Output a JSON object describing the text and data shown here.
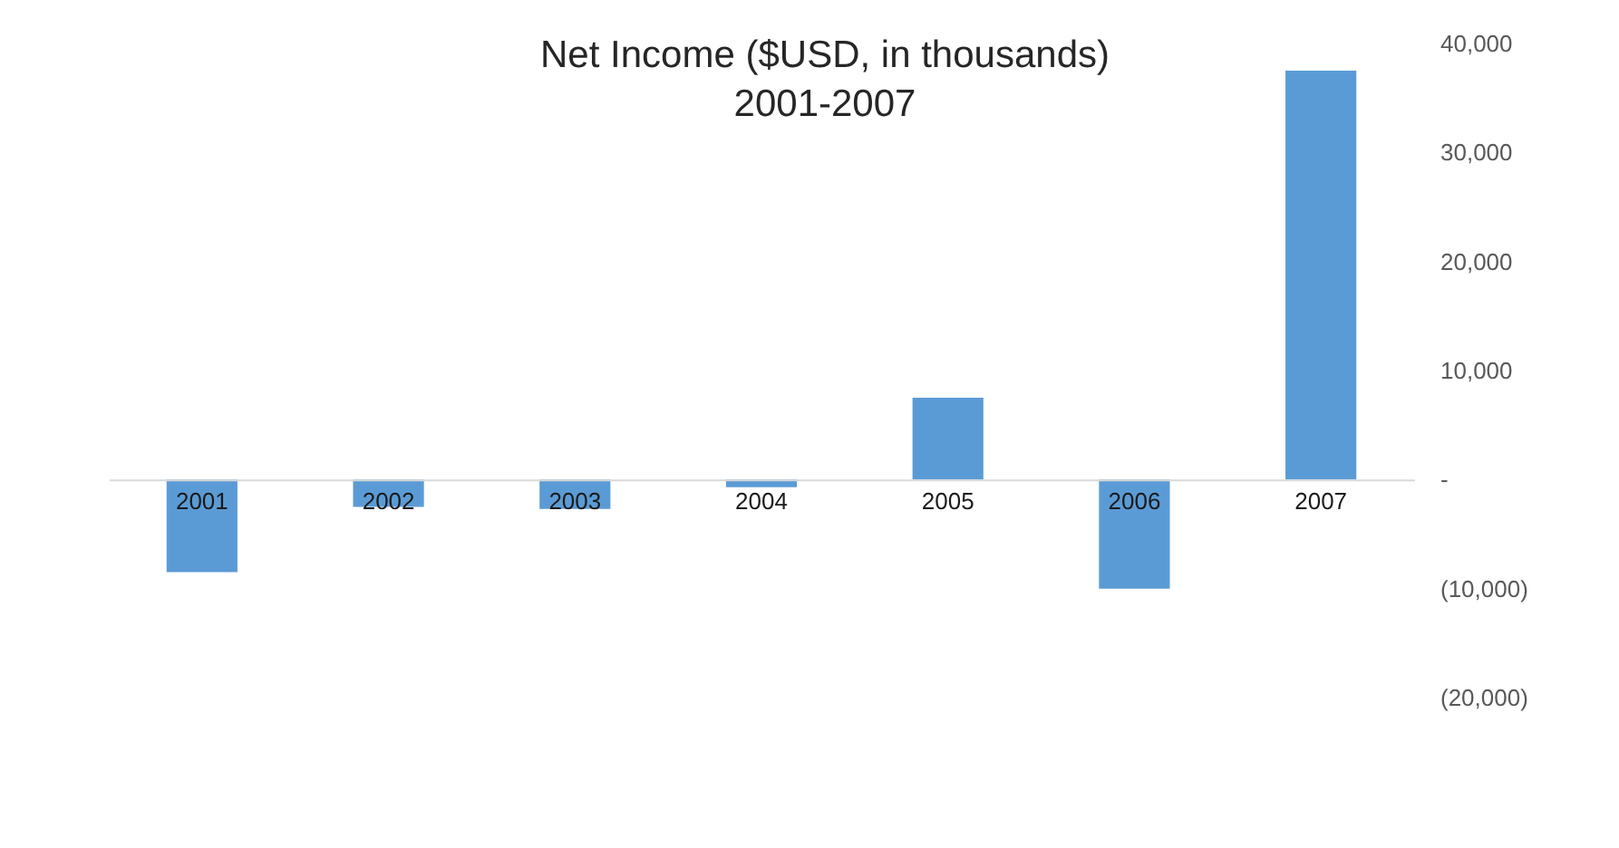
{
  "chart_data": {
    "type": "bar",
    "title": "Net Income ($USD, in thousands)",
    "subtitle": "2001-2007",
    "categories": [
      "2001",
      "2002",
      "2003",
      "2004",
      "2005",
      "2006",
      "2007"
    ],
    "values": [
      -8500,
      -2500,
      -2700,
      -700,
      7500,
      -10000,
      37500
    ],
    "color": "#5b9bd5",
    "ylim": [
      -20000,
      40000
    ],
    "yticks": [
      {
        "value": -20000,
        "label": "(20,000)"
      },
      {
        "value": -10000,
        "label": "(10,000)"
      },
      {
        "value": 0,
        "label": "-"
      },
      {
        "value": 10000,
        "label": "10,000"
      },
      {
        "value": 20000,
        "label": "20,000"
      },
      {
        "value": 30000,
        "label": "30,000"
      },
      {
        "value": 40000,
        "label": "40,000"
      }
    ],
    "grid": false
  }
}
